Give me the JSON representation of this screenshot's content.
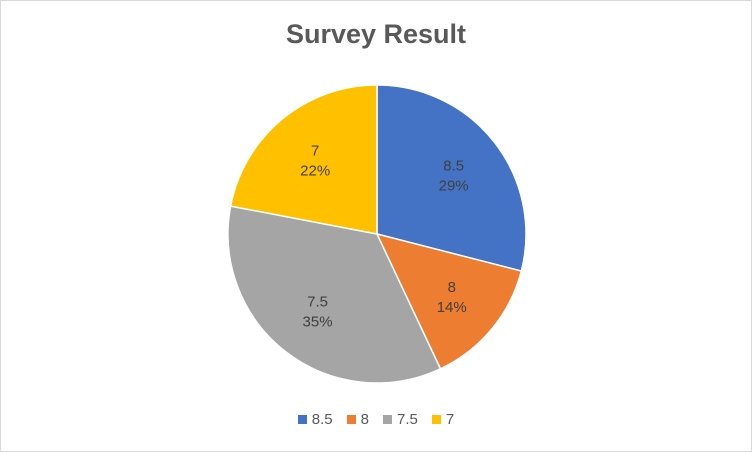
{
  "chart_data": {
    "type": "pie",
    "title": "Survey Result",
    "slices": [
      {
        "label": "8.5",
        "value": 29,
        "value_label": "29%",
        "color": "#4472c4"
      },
      {
        "label": "8",
        "value": 14,
        "value_label": "14%",
        "color": "#ed7d31"
      },
      {
        "label": "7.5",
        "value": 35,
        "value_label": "35%",
        "color": "#a5a5a5"
      },
      {
        "label": "7",
        "value": 22,
        "value_label": "22%",
        "color": "#ffc000"
      }
    ],
    "legend_position": "bottom"
  }
}
